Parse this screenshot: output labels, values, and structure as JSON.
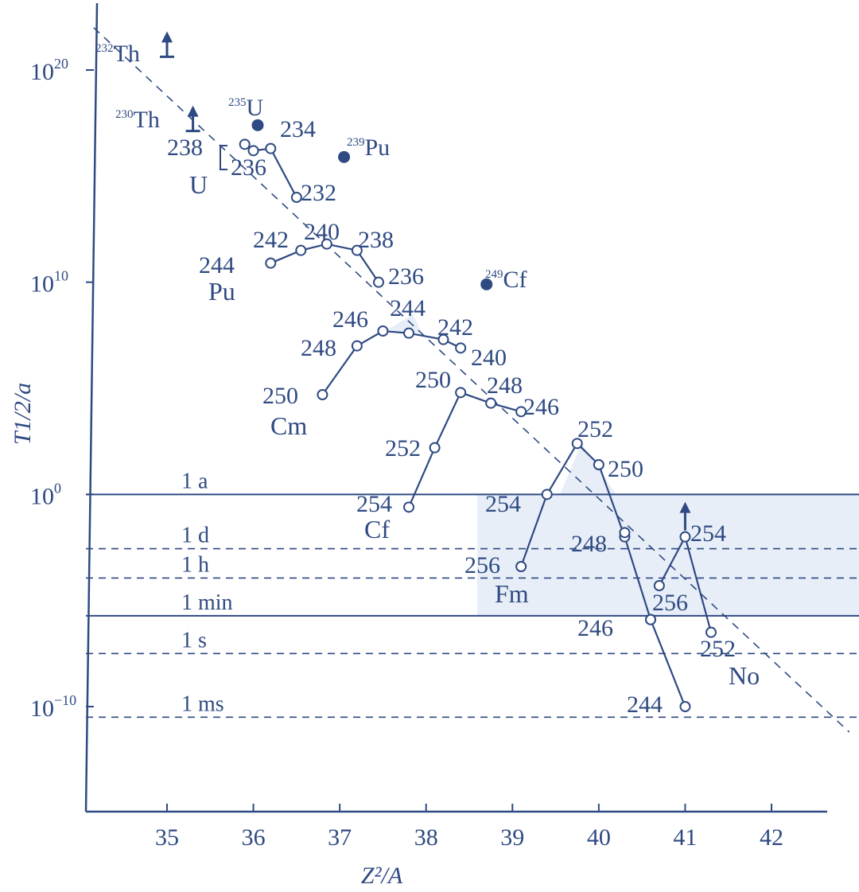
{
  "chart_data": {
    "type": "scatter",
    "title": "",
    "xlabel": "Z²/A",
    "ylabel": "T1/2/a",
    "xlim": [
      34.1,
      42.7
    ],
    "x_ticks": [
      35,
      36,
      37,
      38,
      39,
      40,
      41,
      42
    ],
    "y_scale": "log10",
    "ylim_log10": [
      -14.5,
      23.5
    ],
    "y_tick_labels": [
      {
        "exp": 20,
        "base": "10",
        "sup": "20"
      },
      {
        "exp": 10,
        "base": "10",
        "sup": "10"
      },
      {
        "exp": 0,
        "base": "10",
        "sup": "0"
      },
      {
        "exp": -10,
        "base": "10",
        "sup": "−10"
      }
    ],
    "reference_lines": [
      {
        "label": "1 a",
        "log10_years": 0.0,
        "style": "solid"
      },
      {
        "label": "1 d",
        "log10_years": -2.56,
        "style": "dashed"
      },
      {
        "label": "1 h",
        "log10_years": -3.94,
        "style": "dashed"
      },
      {
        "label": "1 min",
        "log10_years": -5.72,
        "style": "solid"
      },
      {
        "label": "1 s",
        "log10_years": -7.5,
        "style": "dashed"
      },
      {
        "label": "1 ms",
        "log10_years": -10.5,
        "style": "dashed"
      }
    ],
    "trend_line": {
      "x": [
        34.15,
        42.9
      ],
      "log10_y": [
        22.0,
        -11.2
      ],
      "style": "dashed"
    },
    "series": [
      {
        "name": "U",
        "points": [
          {
            "a": "238",
            "x": 35.9,
            "y": 16.5
          },
          {
            "a": "236",
            "x": 36.0,
            "y": 16.2
          },
          {
            "a": "234",
            "x": 36.2,
            "y": 16.3
          },
          {
            "a": "232",
            "x": 36.5,
            "y": 14.0
          }
        ]
      },
      {
        "name": "Pu",
        "points": [
          {
            "a": "244",
            "x": 36.2,
            "y": 10.9
          },
          {
            "a": "242",
            "x": 36.55,
            "y": 11.5
          },
          {
            "a": "240",
            "x": 36.85,
            "y": 11.8
          },
          {
            "a": "238",
            "x": 37.2,
            "y": 11.5
          },
          {
            "a": "236",
            "x": 37.45,
            "y": 10.0
          }
        ]
      },
      {
        "name": "Cm",
        "points": [
          {
            "a": "250",
            "x": 36.8,
            "y": 4.7
          },
          {
            "a": "248",
            "x": 37.2,
            "y": 7.0
          },
          {
            "a": "246",
            "x": 37.5,
            "y": 7.7
          },
          {
            "a": "244",
            "x": 37.8,
            "y": 7.6
          },
          {
            "a": "242",
            "x": 38.2,
            "y": 7.3
          },
          {
            "a": "240",
            "x": 38.4,
            "y": 6.9
          }
        ]
      },
      {
        "name": "Cf",
        "points": [
          {
            "a": "254",
            "x": 37.8,
            "y": -0.6
          },
          {
            "a": "252",
            "x": 38.1,
            "y": 2.2
          },
          {
            "a": "250",
            "x": 38.4,
            "y": 4.8
          },
          {
            "a": "248",
            "x": 38.75,
            "y": 4.3
          },
          {
            "a": "246",
            "x": 39.1,
            "y": 3.9
          }
        ]
      },
      {
        "name": "Fm",
        "points": [
          {
            "a": "256",
            "x": 39.1,
            "y": -3.4
          },
          {
            "a": "254",
            "x": 39.4,
            "y": 0.0
          },
          {
            "a": "252",
            "x": 39.75,
            "y": 2.4
          },
          {
            "a": "250",
            "x": 40.0,
            "y": 1.4
          },
          {
            "a": "248",
            "x": 40.3,
            "y": -2.0
          },
          {
            "a": "246",
            "x": 40.6,
            "y": -5.9
          }
        ]
      },
      {
        "name": "No",
        "points": [
          {
            "a": "244",
            "x": 41.0,
            "y": -10.0
          },
          {
            "a": "246",
            "x": 40.6,
            "y": -5.9
          },
          {
            "a": "248",
            "x": 40.3,
            "y": -1.8
          },
          {
            "a": "256",
            "x": 40.7,
            "y": -4.3
          },
          {
            "a": "254",
            "x": 41.0,
            "y": -2.0
          },
          {
            "a": "252",
            "x": 41.3,
            "y": -6.5
          }
        ]
      }
    ],
    "filled_points": [
      {
        "label": "235U",
        "iso_sup": "235",
        "sym": "U",
        "x": 36.05,
        "y": 17.4
      },
      {
        "label": "239Pu",
        "iso_sup": "239",
        "sym": "Pu",
        "x": 37.05,
        "y": 15.9
      },
      {
        "label": "249Cf",
        "iso_sup": "249",
        "sym": "Cf",
        "x": 38.7,
        "y": 9.9
      }
    ],
    "lower_limits": [
      {
        "label": "232Th",
        "iso_sup": "232",
        "sym": "Th",
        "x": 35.0,
        "y": 21.0
      },
      {
        "label": "230Th",
        "iso_sup": "230",
        "sym": "Th",
        "x": 35.3,
        "y": 17.5
      }
    ]
  }
}
